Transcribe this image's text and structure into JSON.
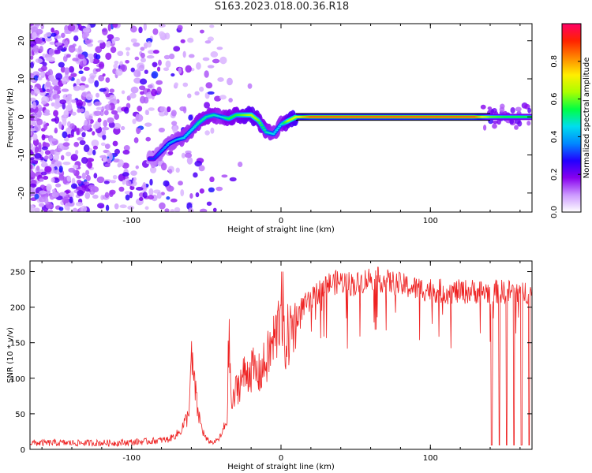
{
  "title": "S163.2023.018.00.36.R18",
  "chart_data": [
    {
      "type": "heatmap",
      "xlabel": "Height of straight line (km)",
      "ylabel": "Frequency (Hz)",
      "xlim": [
        -168,
        168
      ],
      "ylim": [
        -25,
        24.5
      ],
      "xticks": [
        -100,
        0,
        100
      ],
      "yticks": [
        -20,
        -10,
        0,
        10,
        20
      ],
      "colorbar": {
        "label": "Normalized spectral amplitude",
        "range": [
          0,
          1
        ],
        "ticks": [
          "0.0",
          "0.2",
          "0.4",
          "0.6",
          "0.8"
        ],
        "colors": [
          "#ffffff",
          "#cc99ff",
          "#8800ee",
          "#2200ff",
          "#0088ff",
          "#00ddee",
          "#00ff44",
          "#aaff00",
          "#ffee00",
          "#ff8800",
          "#ff2200",
          "#ff0066"
        ]
      },
      "ridge": {
        "x": [
          -85,
          -80,
          -75,
          -70,
          -65,
          -60,
          -55,
          -50,
          -45,
          -40,
          -35,
          -30,
          -25,
          -20,
          -15,
          -10,
          -5,
          0,
          5,
          10,
          20,
          50,
          100,
          130,
          140,
          150,
          168
        ],
        "y": [
          -11,
          -9,
          -7,
          -6,
          -5.5,
          -3.5,
          -1.5,
          0,
          0.5,
          0,
          -0.5,
          0.5,
          0.5,
          0.5,
          -1,
          -4,
          -4.5,
          -2,
          -1,
          0,
          0,
          0,
          0,
          0,
          0,
          0,
          0
        ],
        "amplitude": [
          0.3,
          0.35,
          0.4,
          0.4,
          0.45,
          0.45,
          0.5,
          0.5,
          0.5,
          0.45,
          0.55,
          0.55,
          0.6,
          0.65,
          0.6,
          0.5,
          0.45,
          0.45,
          0.65,
          0.7,
          0.85,
          0.85,
          0.85,
          0.85,
          0.6,
          0.55,
          0.55
        ]
      },
      "background_noise": {
        "x_range": [
          -168,
          -40
        ],
        "level": "low, scattered purple speckle"
      }
    },
    {
      "type": "line",
      "xlabel": "Height of straight line (km)",
      "ylabel": "SNR (10 * v/v)",
      "xlim": [
        -168,
        168
      ],
      "ylim": [
        0,
        265
      ],
      "xticks": [
        -100,
        0,
        100
      ],
      "yticks": [
        0,
        50,
        100,
        150,
        200,
        250
      ],
      "series": [
        {
          "color": "#ee2222",
          "x": [
            -168,
            -140,
            -110,
            -90,
            -75,
            -68,
            -62,
            -60,
            -58,
            -56,
            -54,
            -52,
            -50,
            -48,
            -45,
            -42,
            -40,
            -36,
            -35,
            -33,
            -30,
            -25,
            -20,
            -15,
            -10,
            -5,
            -2,
            0,
            1,
            5,
            10,
            15,
            20,
            25,
            30,
            40,
            50,
            60,
            70,
            80,
            90,
            100,
            110,
            120,
            130,
            135,
            138,
            140,
            141,
            145,
            146,
            150,
            151,
            155,
            156,
            160,
            161,
            165,
            166,
            168
          ],
          "y": [
            10,
            10,
            10,
            12,
            15,
            25,
            50,
            130,
            100,
            60,
            40,
            25,
            15,
            12,
            10,
            15,
            20,
            45,
            170,
            60,
            90,
            110,
            120,
            110,
            130,
            160,
            180,
            230,
            150,
            170,
            190,
            205,
            210,
            225,
            235,
            240,
            235,
            245,
            240,
            235,
            230,
            228,
            225,
            225,
            226,
            225,
            225,
            225,
            8,
            225,
            8,
            225,
            8,
            225,
            8,
            225,
            8,
            225,
            8,
            220
          ]
        }
      ]
    }
  ]
}
